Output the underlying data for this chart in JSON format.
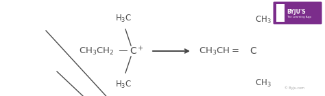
{
  "bg_color": "#ffffff",
  "text_color": "#4a4a4a",
  "arrow_color": "#444444",
  "byju_purple": "#7b2d8b",
  "figsize": [
    4.74,
    1.41
  ],
  "dpi": 100,
  "copyright_text": "© Byju.com"
}
